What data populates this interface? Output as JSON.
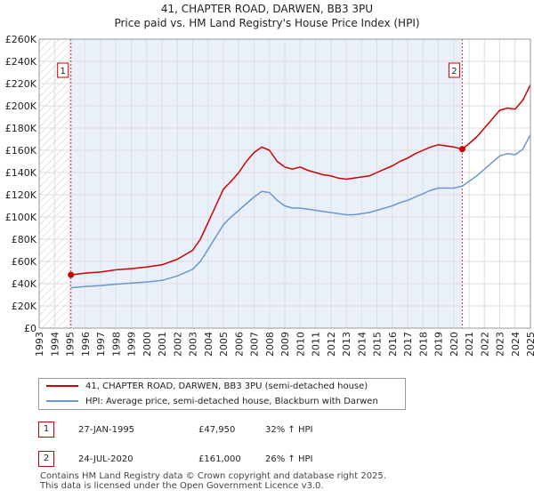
{
  "chart_data": {
    "type": "line",
    "title": "41, CHAPTER ROAD, DARWEN, BB3 3PU",
    "subtitle": "Price paid vs. HM Land Registry's House Price Index (HPI)",
    "xlabel": "",
    "ylabel": "",
    "xlim": [
      1993,
      2025
    ],
    "ylim": [
      0,
      260000
    ],
    "y_ticks": [
      0,
      20000,
      40000,
      60000,
      80000,
      100000,
      120000,
      140000,
      160000,
      180000,
      200000,
      220000,
      240000,
      260000
    ],
    "y_tick_labels": [
      "£0",
      "£20K",
      "£40K",
      "£60K",
      "£80K",
      "£100K",
      "£120K",
      "£140K",
      "£160K",
      "£180K",
      "£200K",
      "£220K",
      "£240K",
      "£260K"
    ],
    "x_ticks": [
      1993,
      1994,
      1995,
      1996,
      1997,
      1998,
      1999,
      2000,
      2001,
      2002,
      2003,
      2004,
      2005,
      2006,
      2007,
      2008,
      2009,
      2010,
      2011,
      2012,
      2013,
      2014,
      2015,
      2016,
      2017,
      2018,
      2019,
      2020,
      2021,
      2022,
      2023,
      2024,
      2025
    ],
    "x_tick_labels": [
      "1993",
      "1994",
      "1995",
      "1996",
      "1997",
      "1998",
      "1999",
      "2000",
      "2001",
      "2002",
      "2003",
      "2004",
      "2005",
      "2006",
      "2007",
      "2008",
      "2009",
      "2010",
      "2011",
      "2012",
      "2013",
      "2014",
      "2015",
      "2016",
      "2017",
      "2018",
      "2019",
      "2020",
      "2021",
      "2022",
      "2023",
      "2024",
      "2025"
    ],
    "grid": true,
    "hatched_ranges": [
      [
        1993,
        1995.07
      ]
    ],
    "shaded_range": [
      1995.07,
      2020.56
    ],
    "series": [
      {
        "name": "41, CHAPTER ROAD, DARWEN, BB3 3PU (semi-detached house)",
        "color": "#cc0000",
        "x": [
          1995.07,
          1996,
          1997,
          1998,
          1999,
          2000,
          2001,
          2002,
          2003,
          2003.5,
          2004,
          2004.5,
          2005,
          2005.5,
          2006,
          2006.5,
          2007,
          2007.5,
          2008,
          2008.5,
          2009,
          2009.5,
          2010,
          2010.5,
          2011,
          2011.5,
          2012,
          2012.5,
          2013,
          2013.5,
          2014,
          2014.5,
          2015,
          2015.5,
          2016,
          2016.5,
          2017,
          2017.5,
          2018,
          2018.5,
          2019,
          2019.5,
          2020,
          2020.56,
          2021,
          2021.5,
          2022,
          2022.5,
          2023,
          2023.5,
          2024,
          2024.5,
          2025
        ],
        "values": [
          47950,
          49500,
          50500,
          52500,
          53500,
          55000,
          57000,
          62000,
          70000,
          80000,
          95000,
          110000,
          125000,
          132000,
          140000,
          150000,
          158000,
          163000,
          160000,
          150000,
          145000,
          143000,
          145000,
          142000,
          140000,
          138000,
          137000,
          135000,
          134000,
          135000,
          136000,
          137000,
          140000,
          143000,
          146000,
          150000,
          153000,
          157000,
          160000,
          163000,
          165000,
          164000,
          163000,
          161000,
          166000,
          172000,
          180000,
          188000,
          196000,
          198000,
          197000,
          205000,
          219000
        ]
      },
      {
        "name": "HPI: Average price, semi-detached house, Blackburn with Darwen",
        "color": "#6b96d0",
        "x": [
          1995.07,
          1996,
          1997,
          1998,
          1999,
          2000,
          2001,
          2002,
          2003,
          2003.5,
          2004,
          2004.5,
          2005,
          2005.5,
          2006,
          2006.5,
          2007,
          2007.5,
          2008,
          2008.5,
          2009,
          2009.5,
          2010,
          2010.5,
          2011,
          2011.5,
          2012,
          2012.5,
          2013,
          2013.5,
          2014,
          2014.5,
          2015,
          2015.5,
          2016,
          2016.5,
          2017,
          2017.5,
          2018,
          2018.5,
          2019,
          2019.5,
          2020,
          2020.56,
          2021,
          2021.5,
          2022,
          2022.5,
          2023,
          2023.5,
          2024,
          2024.5,
          2025
        ],
        "values": [
          36300,
          37500,
          38300,
          39500,
          40500,
          41500,
          43000,
          47000,
          53000,
          60000,
          71000,
          82000,
          93000,
          100000,
          106000,
          112000,
          118000,
          123000,
          122000,
          115000,
          110000,
          108000,
          108000,
          107000,
          106000,
          105000,
          104000,
          103000,
          102000,
          102000,
          103000,
          104000,
          106000,
          108000,
          110000,
          113000,
          115000,
          118000,
          121000,
          124000,
          126000,
          126000,
          126000,
          127800,
          132000,
          137000,
          143000,
          149000,
          155000,
          157000,
          156000,
          161000,
          174000
        ]
      }
    ],
    "annotations": [
      {
        "label": "1",
        "x": 1995.07,
        "y": 47950
      },
      {
        "label": "2",
        "x": 2020.56,
        "y": 161000
      }
    ]
  },
  "legend": {
    "items": [
      {
        "label": "41, CHAPTER ROAD, DARWEN, BB3 3PU (semi-detached house)",
        "color": "#cc0000"
      },
      {
        "label": "HPI: Average price, semi-detached house, Blackburn with Darwen",
        "color": "#6b96d0"
      }
    ]
  },
  "transactions": [
    {
      "num": "1",
      "date": "27-JAN-1995",
      "price": "£47,950",
      "hpi": "32% ↑ HPI"
    },
    {
      "num": "2",
      "date": "24-JUL-2020",
      "price": "£161,000",
      "hpi": "26% ↑ HPI"
    }
  ],
  "footer": {
    "line1": "Contains HM Land Registry data © Crown copyright and database right 2025.",
    "line2": "This data is licensed under the Open Government Licence v3.0."
  }
}
